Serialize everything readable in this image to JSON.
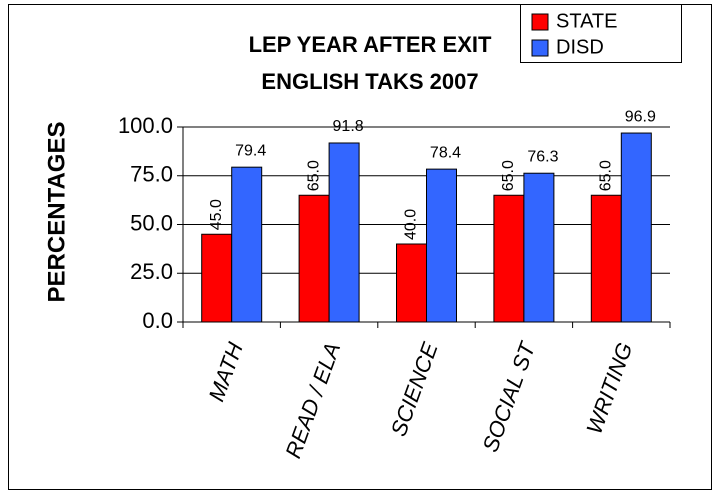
{
  "chart_data": {
    "type": "bar",
    "title": "LEP YEAR AFTER EXIT",
    "subtitle": "ENGLISH TAKS 2007",
    "y_label": "PERCENTAGES",
    "categories": [
      "MATH",
      "READ / ELA",
      "SCIENCE",
      "SOCIAL ST",
      "WRITING"
    ],
    "series": [
      {
        "name": "STATE",
        "color": "#ff0000",
        "values": [
          45,
          65,
          40,
          65,
          65
        ],
        "value_labels": [
          "45.0",
          "65.0",
          "40.0",
          "65.0",
          "65.0"
        ]
      },
      {
        "name": "DISD",
        "color": "#3366ff",
        "values": [
          79.4,
          91.8,
          78.4,
          76.3,
          96.9
        ],
        "value_labels": [
          "79.4",
          "91.8",
          "78.4",
          "76.3",
          "96.9"
        ]
      }
    ],
    "ylim": [
      0,
      100
    ],
    "yticks": [
      {
        "value": 0,
        "label": "0.0"
      },
      {
        "value": 25,
        "label": "25.0"
      },
      {
        "value": 50,
        "label": "50.0"
      },
      {
        "value": 75,
        "label": "75.0"
      },
      {
        "value": 100,
        "label": "100.0"
      }
    ],
    "grid": true,
    "legend": "top-right"
  }
}
